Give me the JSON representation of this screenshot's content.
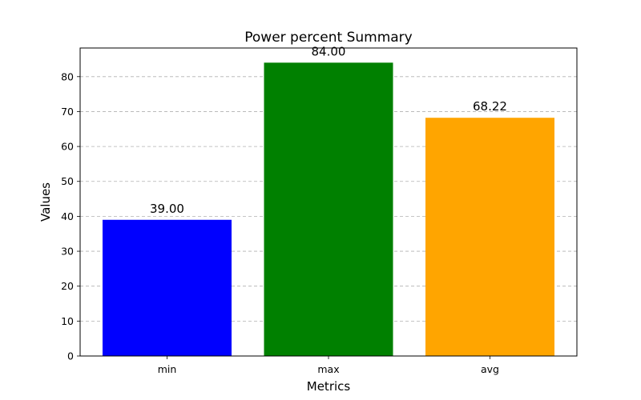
{
  "chart_data": {
    "type": "bar",
    "title": "Power percent Summary",
    "xlabel": "Metrics",
    "ylabel": "Values",
    "categories": [
      "min",
      "max",
      "avg"
    ],
    "values": [
      39.0,
      84.0,
      68.22
    ],
    "value_labels": [
      "39.00",
      "84.00",
      "68.22"
    ],
    "colors": [
      "#0000ff",
      "#008000",
      "#ffa500"
    ],
    "ylim": [
      0,
      88.2
    ],
    "yticks": [
      0,
      10,
      20,
      30,
      40,
      50,
      60,
      70,
      80
    ],
    "grid": "y-dashed",
    "legend": "none"
  }
}
